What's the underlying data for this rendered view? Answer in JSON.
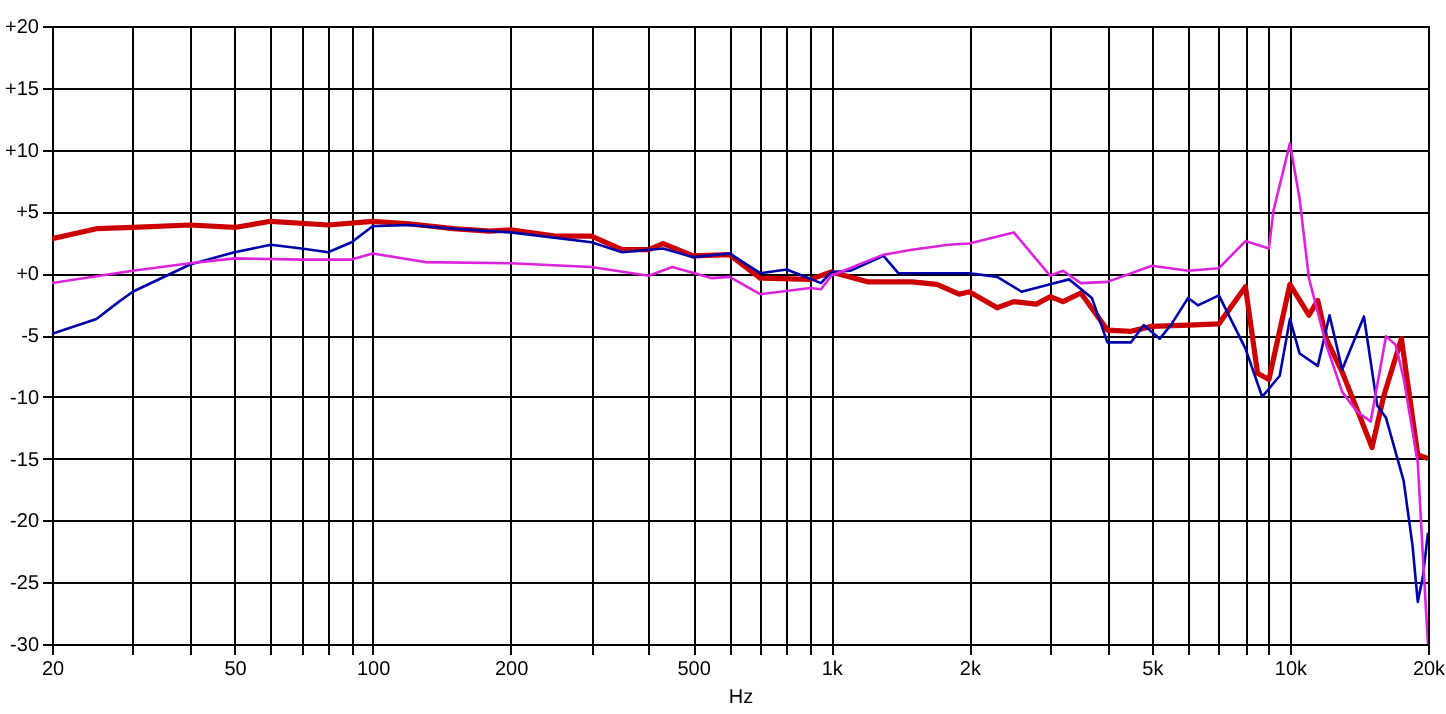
{
  "chart_data": {
    "type": "line",
    "xlabel": "Hz",
    "log": "x",
    "grid": true,
    "line_style": "solid",
    "marker": "none",
    "xlim": [
      20,
      20000
    ],
    "xticks": [
      20,
      {
        "value": 30,
        "label": null
      },
      {
        "value": 40,
        "label": null
      },
      50,
      {
        "value": 60,
        "label": null
      },
      {
        "value": 70,
        "label": null
      },
      {
        "value": 80,
        "label": null
      },
      {
        "value": 90,
        "label": null
      },
      100,
      200,
      {
        "value": 300,
        "label": null
      },
      {
        "value": 400,
        "label": null
      },
      500,
      {
        "value": 600,
        "label": null
      },
      {
        "value": 700,
        "label": null
      },
      {
        "value": 800,
        "label": null
      },
      {
        "value": 900,
        "label": null
      },
      {
        "value": 1000,
        "label": "1k"
      },
      {
        "value": 2000,
        "label": "2k"
      },
      {
        "value": 3000,
        "label": null
      },
      {
        "value": 4000,
        "label": null
      },
      {
        "value": 5000,
        "label": "5k"
      },
      {
        "value": 6000,
        "label": null
      },
      {
        "value": 7000,
        "label": null
      },
      {
        "value": 8000,
        "label": null
      },
      {
        "value": 9000,
        "label": null
      },
      {
        "value": 10000,
        "label": "10k"
      },
      {
        "value": 20000,
        "label": "20k"
      }
    ],
    "ylim": [
      -30,
      20
    ],
    "yticks": [
      {
        "value": -30,
        "label": "-30"
      },
      -25,
      -20,
      -15,
      -10,
      -5,
      {
        "value": 0,
        "label": "+0"
      },
      {
        "value": 5,
        "label": "+5"
      },
      {
        "value": 10,
        "label": "+10"
      },
      {
        "value": 15,
        "label": "+15"
      },
      {
        "value": 20,
        "label": "+20"
      }
    ],
    "series": [
      {
        "color": "#cc0000",
        "x": [
          20,
          25,
          30,
          40,
          50,
          60,
          80,
          100,
          120,
          150,
          180,
          200,
          250,
          300,
          350,
          400,
          430,
          500,
          600,
          700,
          900,
          1000,
          1200,
          1500,
          1700,
          1900,
          2000,
          2300,
          2500,
          2800,
          3000,
          3200,
          3500,
          4000,
          4500,
          5000,
          6000,
          7000,
          8000,
          8500,
          9000,
          10000,
          11000,
          11500,
          12000,
          13000,
          14000,
          15100,
          16000,
          17500,
          19000,
          20000
        ],
        "values": [
          2.8,
          3.6,
          3.7,
          3.9,
          3.7,
          4.2,
          3.9,
          4.2,
          4.0,
          3.6,
          3.4,
          3.5,
          3.0,
          3.0,
          1.9,
          1.9,
          2.4,
          1.4,
          1.5,
          -0.4,
          -0.5,
          0.1,
          -0.7,
          -0.7,
          -0.9,
          -1.7,
          -1.5,
          -2.8,
          -2.3,
          -2.5,
          -1.9,
          -2.3,
          -1.6,
          -4.6,
          -4.7,
          -4.3,
          -4.2,
          -4.1,
          -1.1,
          -8.1,
          -8.6,
          -0.9,
          -3.4,
          -2.2,
          -5.3,
          -8,
          -11,
          -14.1,
          -10,
          -5.3,
          -14.7,
          -15
        ]
      },
      {
        "color": "#0000aa",
        "x": [
          20,
          25,
          28,
          30,
          40,
          50,
          60,
          70,
          80,
          90,
          100,
          120,
          150,
          200,
          300,
          350,
          430,
          500,
          600,
          700,
          800,
          950,
          1000,
          1100,
          1300,
          1400,
          2000,
          2300,
          2600,
          3000,
          3300,
          3700,
          4000,
          4500,
          4800,
          5200,
          5500,
          6000,
          6300,
          7000,
          8000,
          8700,
          9500,
          10000,
          10500,
          11500,
          12200,
          13000,
          14500,
          15500,
          16200,
          17700,
          18500,
          19000,
          19500,
          20000
        ],
        "values": [
          -4.9,
          -3.7,
          -2.3,
          -1.5,
          0.7,
          1.7,
          2.3,
          2.0,
          1.7,
          2.5,
          3.8,
          3.9,
          3.6,
          3.3,
          2.5,
          1.7,
          2.0,
          1.3,
          1.6,
          0,
          0.3,
          -0.8,
          0.1,
          0.2,
          1.4,
          0,
          0,
          -0.3,
          -1.5,
          -0.9,
          -0.5,
          -2.0,
          -5.6,
          -5.6,
          -4.2,
          -5.3,
          -4.2,
          -2.0,
          -2.6,
          -1.8,
          -6.1,
          -10,
          -8.3,
          -3.7,
          -6.5,
          -7.5,
          -3.4,
          -7.8,
          -3.5,
          -10.7,
          -11.7,
          -16.8,
          -22,
          -26.6,
          -24.5,
          -21
        ]
      },
      {
        "color": "#dd22dd",
        "x": [
          20,
          30,
          40,
          50,
          70,
          90,
          100,
          130,
          200,
          300,
          400,
          450,
          550,
          600,
          700,
          900,
          950,
          1000,
          1300,
          1500,
          1800,
          2000,
          2500,
          3000,
          3200,
          3500,
          4000,
          5000,
          6000,
          7000,
          8000,
          9000,
          9200,
          10000,
          10500,
          11000,
          12000,
          13000,
          14000,
          15000,
          16200,
          17000,
          17700,
          19000,
          19500,
          20000
        ],
        "values": [
          -0.8,
          0.2,
          0.8,
          1.2,
          1.1,
          1.1,
          1.6,
          0.9,
          0.8,
          0.5,
          -0.2,
          0.5,
          -0.4,
          -0.3,
          -1.7,
          -1.2,
          -1.3,
          -0.2,
          1.5,
          1.9,
          2.3,
          2.4,
          3.3,
          -0.2,
          0.2,
          -0.8,
          -0.7,
          0.6,
          0.2,
          0.4,
          2.6,
          2.0,
          5,
          10.5,
          6.0,
          -0.4,
          -5.8,
          -9.6,
          -11.2,
          -12,
          -5.1,
          -5.8,
          -8.5,
          -15.3,
          -23,
          -30
        ]
      }
    ]
  }
}
